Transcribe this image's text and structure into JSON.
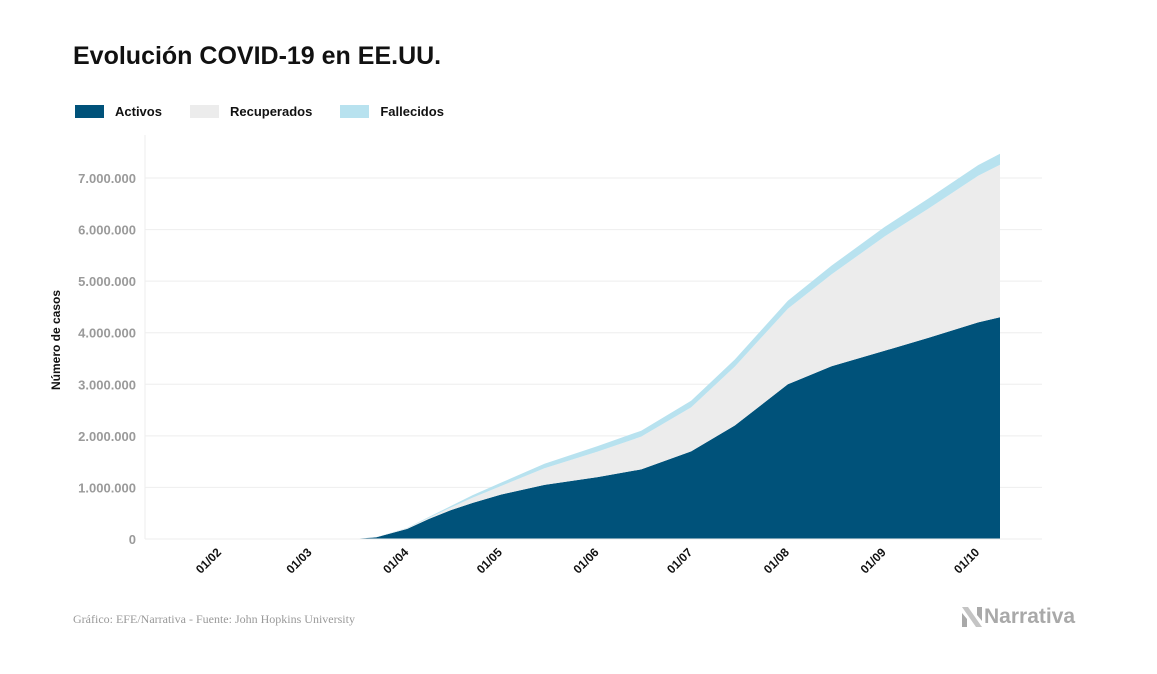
{
  "title": "Evolución COVID-19 en EE.UU.",
  "source": "Gráfico: EFE/Narrativa - Fuente: John Hopkins University",
  "logo": "Narrativa",
  "chart_data": {
    "type": "area",
    "stacked": true,
    "title": "Evolución COVID-19 en EE.UU.",
    "ylabel": "Número de casos",
    "xlabel": "",
    "ylim": [
      0,
      7500000
    ],
    "grid": true,
    "legend_placement": "top-left",
    "yticks": [
      0,
      1000000,
      2000000,
      3000000,
      4000000,
      5000000,
      6000000,
      7000000
    ],
    "ytick_labels": [
      "0",
      "1.000.000",
      "2.000.000",
      "3.000.000",
      "4.000.000",
      "5.000.000",
      "6.000.000",
      "7.000.000"
    ],
    "xticks": [
      "2020-02-01",
      "2020-03-01",
      "2020-04-01",
      "2020-05-01",
      "2020-06-01",
      "2020-07-01",
      "2020-08-01",
      "2020-09-01",
      "2020-10-01"
    ],
    "xtick_labels": [
      "01/02",
      "01/03",
      "01/04",
      "01/05",
      "01/06",
      "01/07",
      "01/08",
      "01/09",
      "01/10"
    ],
    "x": [
      "2020-01-22",
      "2020-03-01",
      "2020-03-15",
      "2020-03-22",
      "2020-04-01",
      "2020-04-08",
      "2020-04-15",
      "2020-04-22",
      "2020-05-01",
      "2020-05-15",
      "2020-06-01",
      "2020-06-15",
      "2020-07-01",
      "2020-07-15",
      "2020-08-01",
      "2020-08-15",
      "2020-09-01",
      "2020-09-15",
      "2020-10-01",
      "2020-10-08"
    ],
    "series": [
      {
        "name": "Activos",
        "color": "#00527a",
        "values": [
          0,
          75,
          3400,
          32000,
          197000,
          390000,
          560000,
          700000,
          860000,
          1050000,
          1200000,
          1350000,
          1700000,
          2200000,
          3000000,
          3350000,
          3650000,
          3900000,
          4200000,
          4300000
        ]
      },
      {
        "name": "Recuperados",
        "color": "#ececec",
        "values": [
          0,
          0,
          40,
          580,
          12900,
          25300,
          52000,
          103000,
          165000,
          323000,
          495000,
          634000,
          852000,
          1143000,
          1466000,
          1781000,
          2216000,
          2504000,
          2843000,
          2958000
        ]
      },
      {
        "name": "Fallecidos",
        "color": "#b8e2ef",
        "values": [
          0,
          0,
          60,
          420,
          5100,
          14700,
          28000,
          47000,
          65000,
          87000,
          105000,
          116000,
          128000,
          137000,
          154000,
          169000,
          184000,
          196000,
          207000,
          212000
        ]
      }
    ]
  }
}
